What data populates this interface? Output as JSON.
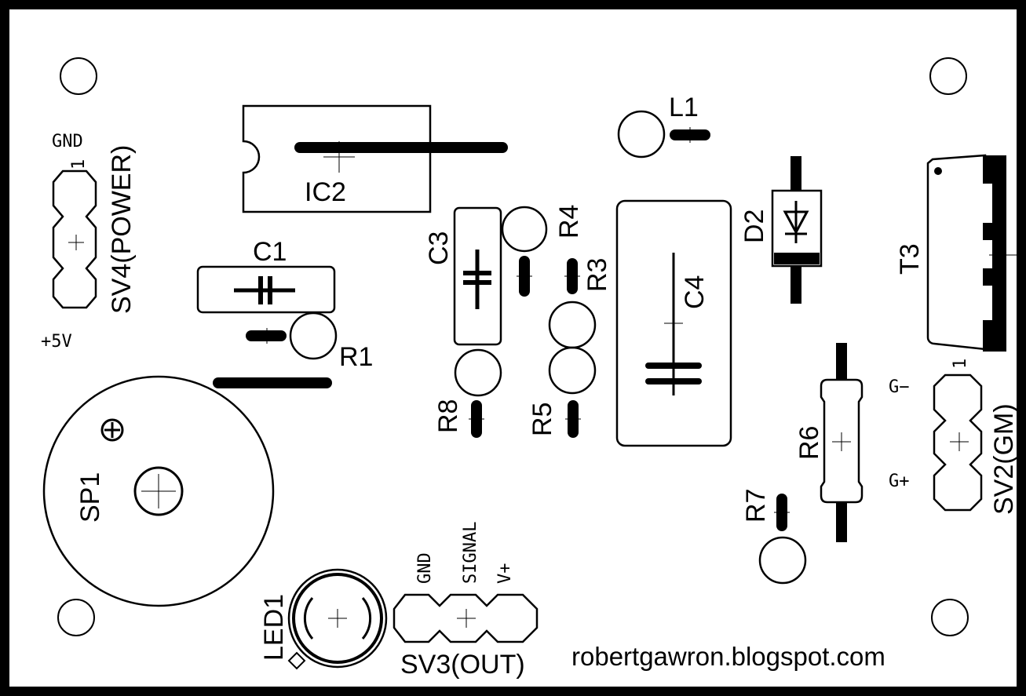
{
  "board": {
    "url_text": "robertgawron.blogspot.com"
  },
  "components": {
    "sv4": {
      "ref": "SV4(POWER)",
      "pin_top": "GND",
      "pin_bottom": "+5V",
      "pin1": "1"
    },
    "ic2": {
      "ref": "IC2"
    },
    "c1": {
      "ref": "C1"
    },
    "r1": {
      "ref": "R1"
    },
    "c3": {
      "ref": "C3"
    },
    "r4": {
      "ref": "R4"
    },
    "r3": {
      "ref": "R3"
    },
    "r5": {
      "ref": "R5"
    },
    "r8": {
      "ref": "R8"
    },
    "l1": {
      "ref": "L1"
    },
    "c4": {
      "ref": "C4"
    },
    "d2": {
      "ref": "D2"
    },
    "t3": {
      "ref": "T3"
    },
    "sv2": {
      "ref": "SV2(GM)",
      "pin_top": "G−",
      "pin_bottom": "G+",
      "pin1": "1"
    },
    "r6": {
      "ref": "R6"
    },
    "r7": {
      "ref": "R7"
    },
    "sp1": {
      "ref": "SP1"
    },
    "led1": {
      "ref": "LED1"
    },
    "sv3": {
      "ref": "SV3(OUT)",
      "pins": [
        "GND",
        "SIGNAL",
        "V+"
      ]
    }
  }
}
